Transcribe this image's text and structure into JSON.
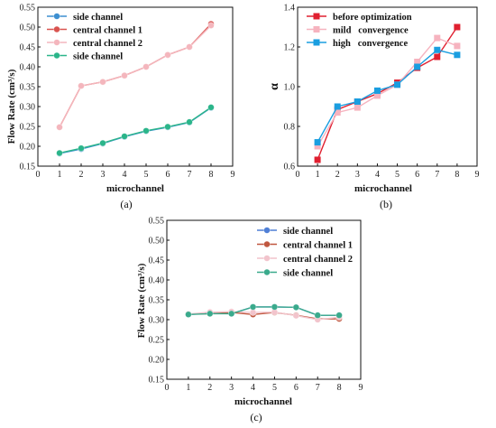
{
  "chart_data": [
    {
      "panel_label": "(a)",
      "type": "line",
      "xlabel": "microchannel",
      "ylabel": "Flow Rate (cm³/s)",
      "xlim": [
        0,
        9
      ],
      "ylim": [
        0.15,
        0.55
      ],
      "xticks": [
        0,
        1,
        2,
        3,
        4,
        5,
        6,
        7,
        8,
        9
      ],
      "yticks": [
        0.15,
        0.2,
        0.25,
        0.3,
        0.35,
        0.4,
        0.45,
        0.5,
        0.55
      ],
      "ytick_decimals": 2,
      "legend_position": "top-left",
      "x": [
        1,
        2,
        3,
        4,
        5,
        6,
        7,
        8
      ],
      "series": [
        {
          "name": "side channel",
          "color": "#3d8fd1",
          "marker": "circle",
          "values": [
            0.182,
            0.193,
            0.207,
            0.224,
            0.238,
            0.248,
            0.26,
            0.297
          ]
        },
        {
          "name": "central channel 1",
          "color": "#d9534f",
          "marker": "circle",
          "values": [
            0.248,
            0.352,
            0.362,
            0.378,
            0.4,
            0.43,
            0.45,
            0.508
          ]
        },
        {
          "name": "central channel 2",
          "color": "#f4b6bd",
          "marker": "circle",
          "values": [
            0.248,
            0.352,
            0.362,
            0.378,
            0.4,
            0.43,
            0.45,
            0.504
          ]
        },
        {
          "name": "side channel",
          "color": "#2bb58a",
          "marker": "circle",
          "values": [
            0.183,
            0.195,
            0.208,
            0.225,
            0.239,
            0.249,
            0.261,
            0.298
          ]
        }
      ]
    },
    {
      "panel_label": "(b)",
      "type": "line",
      "xlabel": "microchannel",
      "ylabel": "α",
      "xlim": [
        0,
        9
      ],
      "ylim": [
        0.6,
        1.4
      ],
      "xticks": [
        0,
        1,
        2,
        3,
        4,
        5,
        6,
        7,
        8,
        9
      ],
      "yticks": [
        0.6,
        0.8,
        1.0,
        1.2,
        1.4
      ],
      "ytick_decimals": 1,
      "legend_position": "top-left",
      "x": [
        1,
        2,
        3,
        4,
        5,
        6,
        7,
        8
      ],
      "series": [
        {
          "name": "before optimization",
          "color": "#e02030",
          "marker": "square",
          "values": [
            0.632,
            0.885,
            0.925,
            0.965,
            1.02,
            1.095,
            1.15,
            1.3
          ]
        },
        {
          "name": "mild   convergence",
          "color": "#f6b3bf",
          "marker": "square",
          "values": [
            0.7,
            0.87,
            0.895,
            0.955,
            1.01,
            1.125,
            1.245,
            1.205
          ]
        },
        {
          "name": "high   convergence",
          "color": "#1a9ee0",
          "marker": "square",
          "values": [
            0.72,
            0.9,
            0.925,
            0.98,
            1.01,
            1.1,
            1.185,
            1.16
          ]
        }
      ]
    },
    {
      "panel_label": "(c)",
      "type": "line",
      "xlabel": "microchannel",
      "ylabel": "Flow Rate (cm³/s)",
      "xlim": [
        0,
        9
      ],
      "ylim": [
        0.15,
        0.55
      ],
      "xticks": [
        0,
        1,
        2,
        3,
        4,
        5,
        6,
        7,
        8,
        9
      ],
      "yticks": [
        0.15,
        0.2,
        0.25,
        0.3,
        0.35,
        0.4,
        0.45,
        0.5,
        0.55
      ],
      "ytick_decimals": 2,
      "legend_position": "top-center",
      "x": [
        1,
        2,
        3,
        4,
        5,
        6,
        7,
        8
      ],
      "series": [
        {
          "name": "side channel",
          "color": "#4f7fd6",
          "marker": "circle",
          "values": [
            0.313,
            0.316,
            0.315,
            0.332,
            0.332,
            0.331,
            0.311,
            0.311
          ]
        },
        {
          "name": "central channel 1",
          "color": "#c0573f",
          "marker": "circle",
          "values": [
            0.314,
            0.315,
            0.318,
            0.313,
            0.318,
            0.311,
            0.302,
            0.302
          ]
        },
        {
          "name": "central channel 2",
          "color": "#f2c4cc",
          "marker": "circle",
          "values": [
            0.314,
            0.319,
            0.32,
            0.318,
            0.319,
            0.31,
            0.3,
            0.306
          ]
        },
        {
          "name": "side channel",
          "color": "#3aaa8c",
          "marker": "circle",
          "values": [
            0.313,
            0.315,
            0.315,
            0.332,
            0.332,
            0.331,
            0.311,
            0.311
          ]
        }
      ]
    }
  ]
}
